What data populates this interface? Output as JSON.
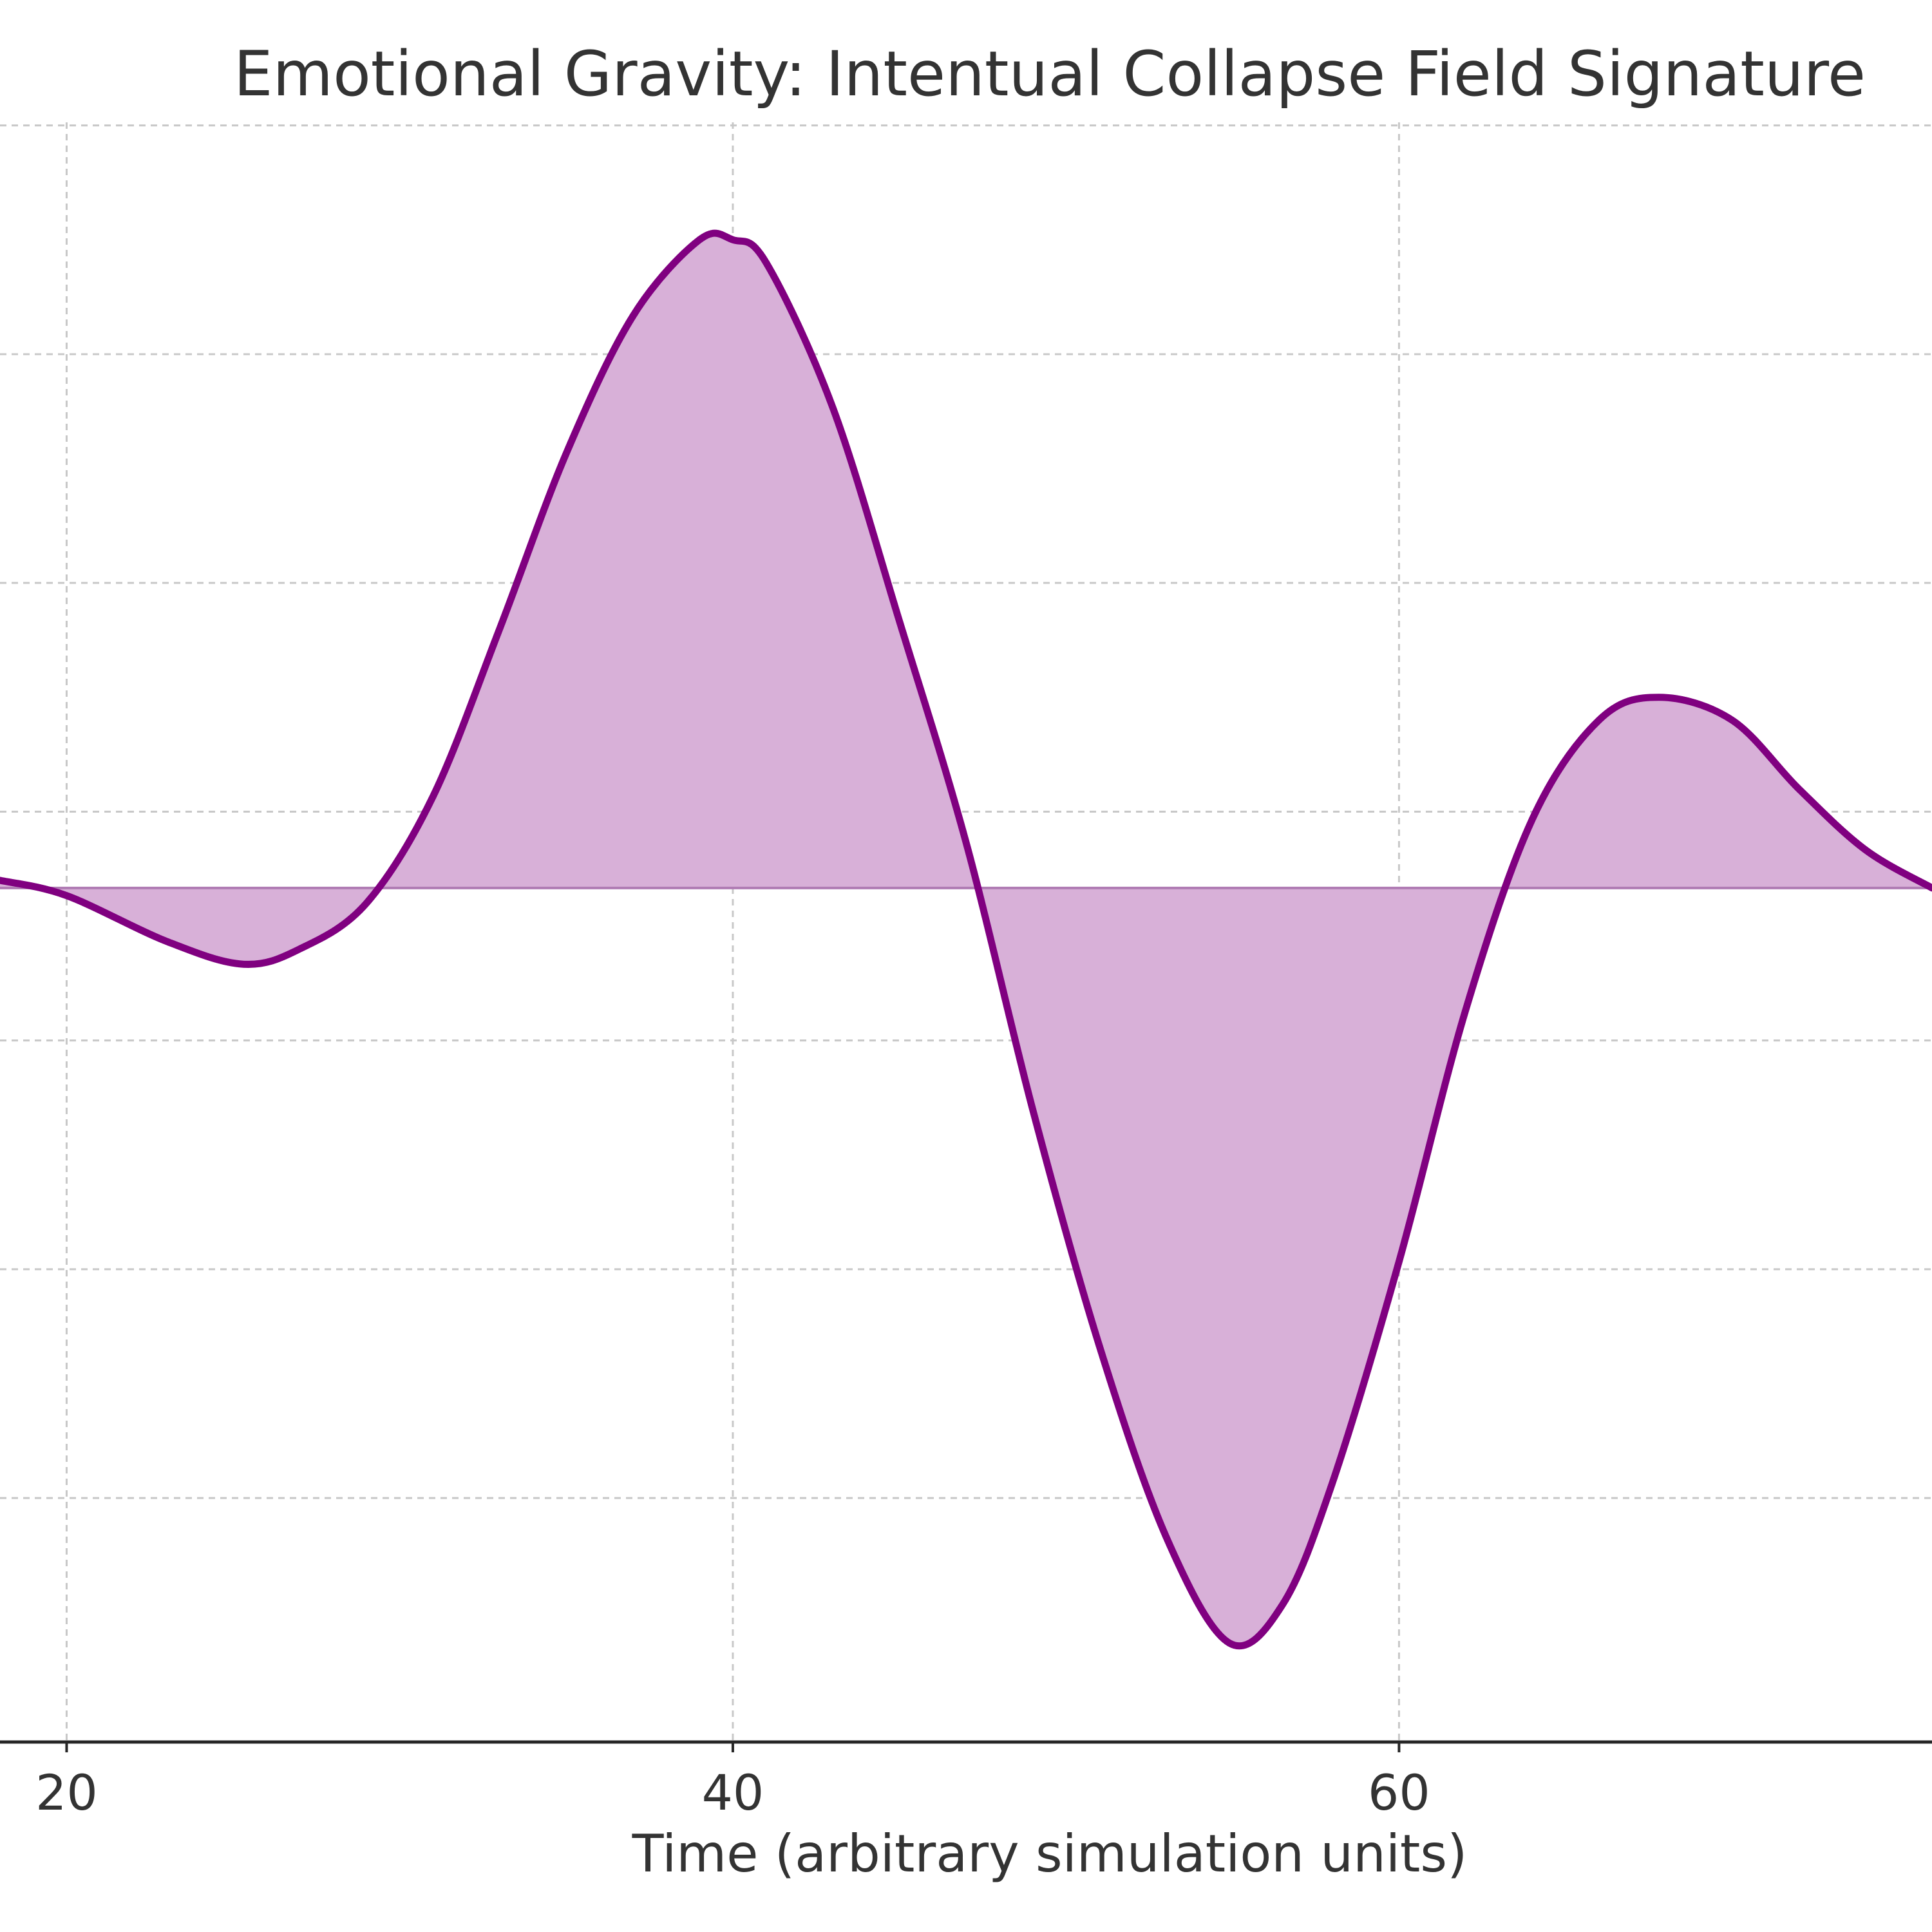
{
  "chart_data": {
    "type": "area",
    "title": "Emotional Gravity: Intentual Collapse Field Signature",
    "xlabel": "Time (arbitrary simulation units)",
    "ylabel": "",
    "x_ticks": [
      20,
      40,
      60
    ],
    "x_tick_labels": [
      "20",
      "40",
      "60"
    ],
    "xlim": [
      18,
      76
    ],
    "ylim": [
      -1.12,
      1.08
    ],
    "y_gridlines": [
      -0.8,
      -0.5,
      -0.2,
      0.1,
      0.4,
      0.7,
      1.0
    ],
    "grid": true,
    "fill_baseline": 0,
    "series": [
      {
        "x": [
          18,
          20,
          23,
          25.3,
          27,
          29,
          31,
          33,
          35,
          37,
          39,
          40,
          41,
          43,
          45,
          47,
          49,
          51,
          53,
          54.9,
          56.5,
          58,
          60,
          62,
          64,
          66,
          67.8,
          70,
          72,
          74,
          76
        ],
        "values": [
          0.01,
          -0.01,
          -0.07,
          -0.1,
          -0.08,
          -0.02,
          0.12,
          0.34,
          0.57,
          0.75,
          0.85,
          0.85,
          0.82,
          0.63,
          0.35,
          0.06,
          -0.29,
          -0.6,
          -0.85,
          -0.99,
          -0.94,
          -0.78,
          -0.49,
          -0.16,
          0.09,
          0.22,
          0.25,
          0.22,
          0.13,
          0.05,
          0.0
        ]
      }
    ],
    "colors": {
      "line": "#800080",
      "fill": "#d8b0d8",
      "baseline": "#b07cb4"
    }
  }
}
